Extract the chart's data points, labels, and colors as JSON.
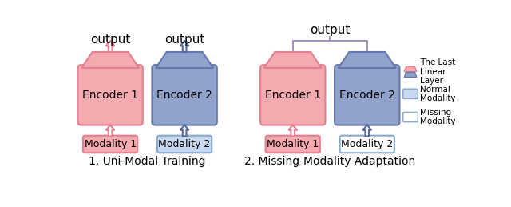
{
  "pink_fill": "#F4AAAF",
  "pink_edge": "#E08090",
  "pink_arrow": "#E08090",
  "blue_fill": "#8FA3CC",
  "blue_edge": "#6677AA",
  "blue_arrow": "#556699",
  "light_blue_fill": "#C8D8EE",
  "light_blue_edge": "#88AACC",
  "missing_fill": "#FFFFFF",
  "missing_edge": "#88AACC",
  "bracket_color": "#9988BB",
  "encoder1_label": "Encoder 1",
  "encoder2_label": "Encoder 2",
  "modality1_label": "Modality 1",
  "modality2_label": "Modality 2",
  "output_label": "output",
  "title1": "1. Uni-Modal Training",
  "title2": "2. Missing-Modality Adaptation",
  "legend_last_linear": "The Last\nLinear\nLayer",
  "legend_normal": "Normal\nModality",
  "legend_missing": "Missing\nModality",
  "bg_color": "#FFFFFF"
}
